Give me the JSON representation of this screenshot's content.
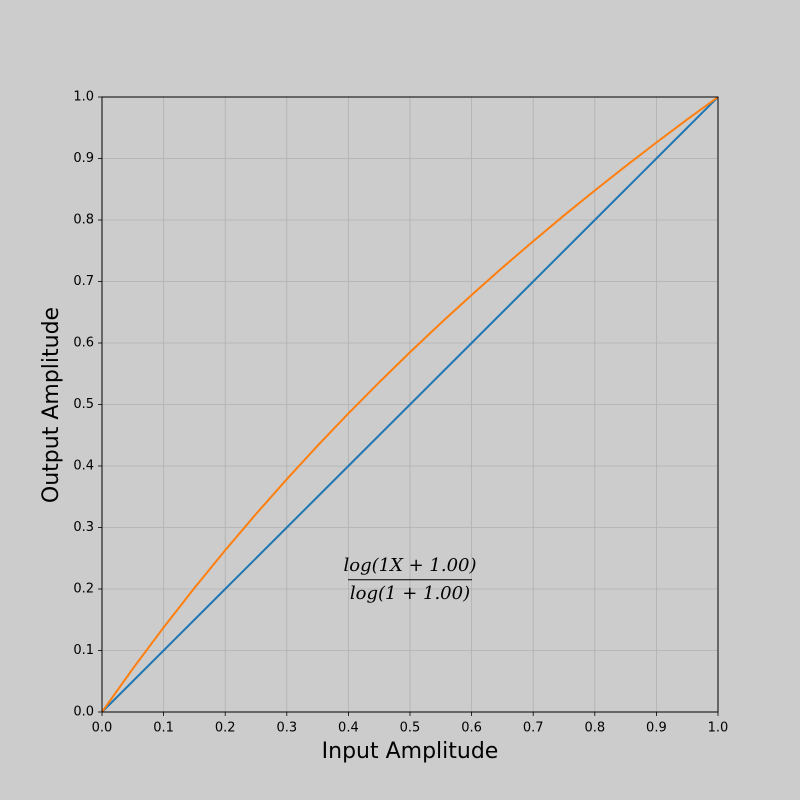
{
  "chart_data": {
    "type": "line",
    "x": [
      0,
      0.05,
      0.1,
      0.15,
      0.2,
      0.25,
      0.3,
      0.35,
      0.4,
      0.45,
      0.5,
      0.55,
      0.6,
      0.65,
      0.7,
      0.75,
      0.8,
      0.85,
      0.9,
      0.95,
      1
    ],
    "series": [
      {
        "color": "#1f77b4",
        "values": [
          0,
          0.05,
          0.1,
          0.15,
          0.2,
          0.25,
          0.3,
          0.35,
          0.4,
          0.45,
          0.5,
          0.55,
          0.6,
          0.65,
          0.7,
          0.75,
          0.8,
          0.85,
          0.9,
          0.95,
          1
        ]
      },
      {
        "color": "#ff7f0e",
        "values": [
          0,
          0.0704,
          0.1375,
          0.2016,
          0.263,
          0.3219,
          0.3785,
          0.433,
          0.4854,
          0.5361,
          0.585,
          0.6323,
          0.6781,
          0.7225,
          0.7655,
          0.8074,
          0.848,
          0.8875,
          0.926,
          0.9635,
          1
        ]
      }
    ],
    "xlabel": "Input Amplitude",
    "ylabel": "Output Amplitude",
    "annotation": {
      "numerator": "log(1X + 1.00)",
      "denominator": "log(1 + 1.00)"
    },
    "xlim": [
      0,
      1
    ],
    "ylim": [
      0,
      1
    ],
    "xticks": [
      {
        "value": 0,
        "label": "0.0"
      },
      0.1,
      0.2,
      0.3,
      0.4,
      0.5,
      0.6,
      0.7,
      0.8,
      0.9,
      {
        "value": 1,
        "label": "1.0"
      }
    ],
    "yticks": [
      {
        "value": 0,
        "label": "0.0"
      },
      0.1,
      0.2,
      0.3,
      0.4,
      0.5,
      0.6,
      0.7,
      0.8,
      0.9,
      {
        "value": 1,
        "label": "1.0"
      }
    ],
    "grid": true
  }
}
